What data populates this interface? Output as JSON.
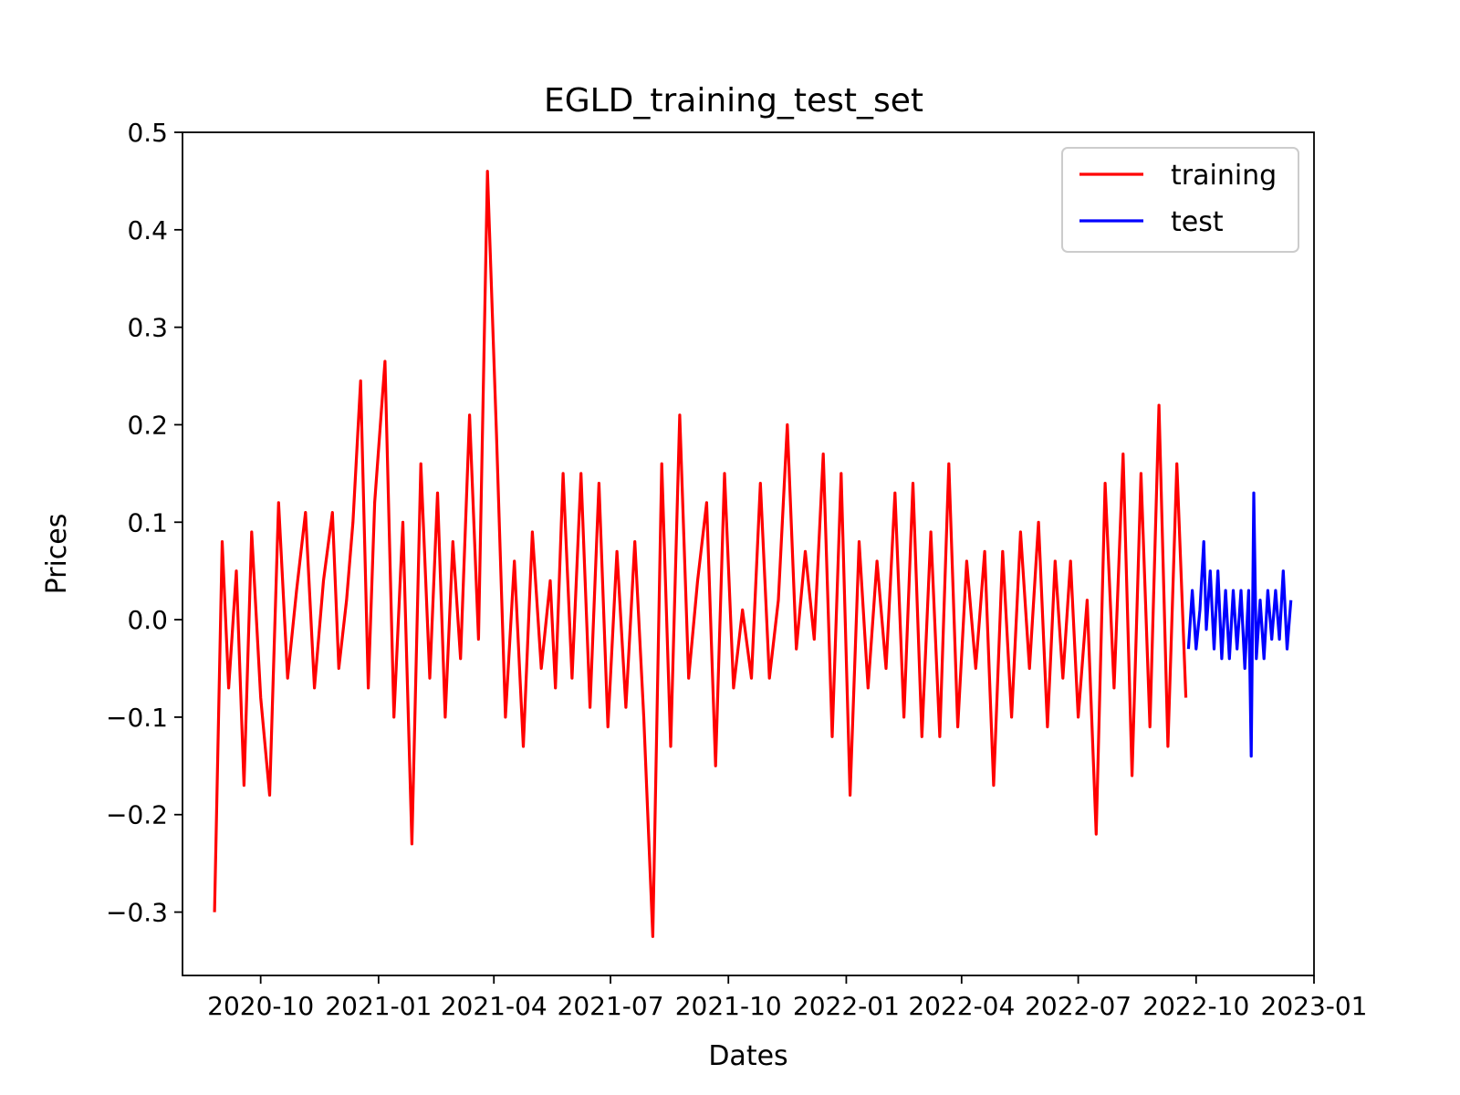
{
  "chart_data": {
    "type": "line",
    "title": "EGLD_training_test_set",
    "xlabel": "Dates",
    "ylabel": "Prices",
    "xlim": [
      "2020-08-01",
      "2023-01-01"
    ],
    "ylim": [
      -0.365,
      0.5
    ],
    "yticks": [
      {
        "value": -0.3,
        "label": "−0.3"
      },
      {
        "value": -0.2,
        "label": "−0.2"
      },
      {
        "value": -0.1,
        "label": "−0.1"
      },
      {
        "value": 0.0,
        "label": "0.0"
      },
      {
        "value": 0.1,
        "label": "0.1"
      },
      {
        "value": 0.2,
        "label": "0.2"
      },
      {
        "value": 0.3,
        "label": "0.3"
      },
      {
        "value": 0.4,
        "label": "0.4"
      },
      {
        "value": 0.5,
        "label": "0.5"
      }
    ],
    "xticks": [
      {
        "value": "2020-10-01",
        "label": "2020-10"
      },
      {
        "value": "2021-01-01",
        "label": "2021-01"
      },
      {
        "value": "2021-04-01",
        "label": "2021-04"
      },
      {
        "value": "2021-07-01",
        "label": "2021-07"
      },
      {
        "value": "2021-10-01",
        "label": "2021-10"
      },
      {
        "value": "2022-01-01",
        "label": "2022-01"
      },
      {
        "value": "2022-04-01",
        "label": "2022-04"
      },
      {
        "value": "2022-07-01",
        "label": "2022-07"
      },
      {
        "value": "2022-10-01",
        "label": "2022-10"
      },
      {
        "value": "2023-01-01",
        "label": "2023-01"
      }
    ],
    "grid": false,
    "legend_position": "top-right",
    "series": [
      {
        "name": "training",
        "color": "#ff0000",
        "x": [
          "2020-08-26",
          "2020-09-01",
          "2020-09-06",
          "2020-09-12",
          "2020-09-18",
          "2020-09-24",
          "2020-10-01",
          "2020-10-08",
          "2020-10-15",
          "2020-10-22",
          "2020-10-29",
          "2020-11-05",
          "2020-11-12",
          "2020-11-19",
          "2020-11-26",
          "2020-12-01",
          "2020-12-07",
          "2020-12-12",
          "2020-12-18",
          "2020-12-24",
          "2020-12-29",
          "2021-01-06",
          "2021-01-13",
          "2021-01-20",
          "2021-01-27",
          "2021-02-03",
          "2021-02-10",
          "2021-02-16",
          "2021-02-22",
          "2021-02-28",
          "2021-03-06",
          "2021-03-13",
          "2021-03-20",
          "2021-03-27",
          "2021-04-03",
          "2021-04-10",
          "2021-04-17",
          "2021-04-24",
          "2021-05-01",
          "2021-05-08",
          "2021-05-15",
          "2021-05-19",
          "2021-05-25",
          "2021-06-01",
          "2021-06-08",
          "2021-06-15",
          "2021-06-22",
          "2021-06-29",
          "2021-07-06",
          "2021-07-13",
          "2021-07-20",
          "2021-07-27",
          "2021-08-03",
          "2021-08-10",
          "2021-08-17",
          "2021-08-24",
          "2021-08-31",
          "2021-09-07",
          "2021-09-14",
          "2021-09-21",
          "2021-09-28",
          "2021-10-05",
          "2021-10-12",
          "2021-10-19",
          "2021-10-26",
          "2021-11-02",
          "2021-11-09",
          "2021-11-16",
          "2021-11-23",
          "2021-11-30",
          "2021-12-07",
          "2021-12-14",
          "2021-12-21",
          "2021-12-28",
          "2022-01-04",
          "2022-01-11",
          "2022-01-18",
          "2022-01-25",
          "2022-02-01",
          "2022-02-08",
          "2022-02-15",
          "2022-02-22",
          "2022-03-01",
          "2022-03-08",
          "2022-03-15",
          "2022-03-22",
          "2022-03-29",
          "2022-04-05",
          "2022-04-12",
          "2022-04-19",
          "2022-04-26",
          "2022-05-03",
          "2022-05-10",
          "2022-05-17",
          "2022-05-24",
          "2022-05-31",
          "2022-06-07",
          "2022-06-13",
          "2022-06-19",
          "2022-06-25",
          "2022-07-01",
          "2022-07-08",
          "2022-07-15",
          "2022-07-22",
          "2022-07-29",
          "2022-08-05",
          "2022-08-12",
          "2022-08-19",
          "2022-08-26",
          "2022-09-02",
          "2022-09-09",
          "2022-09-16",
          "2022-09-23"
        ],
        "y": [
          -0.3,
          0.08,
          -0.07,
          0.05,
          -0.17,
          0.09,
          -0.08,
          -0.18,
          0.12,
          -0.06,
          0.03,
          0.11,
          -0.07,
          0.04,
          0.11,
          -0.05,
          0.02,
          0.1,
          0.245,
          -0.07,
          0.12,
          0.265,
          -0.1,
          0.1,
          -0.23,
          0.16,
          -0.06,
          0.13,
          -0.1,
          0.08,
          -0.04,
          0.21,
          -0.02,
          0.46,
          0.19,
          -0.1,
          0.06,
          -0.13,
          0.09,
          -0.05,
          0.04,
          -0.07,
          0.15,
          -0.06,
          0.15,
          -0.09,
          0.14,
          -0.11,
          0.07,
          -0.09,
          0.08,
          -0.1,
          -0.325,
          0.16,
          -0.13,
          0.21,
          -0.06,
          0.04,
          0.12,
          -0.15,
          0.15,
          -0.07,
          0.01,
          -0.06,
          0.14,
          -0.06,
          0.02,
          0.2,
          -0.03,
          0.07,
          -0.02,
          0.17,
          -0.12,
          0.15,
          -0.18,
          0.08,
          -0.07,
          0.06,
          -0.05,
          0.13,
          -0.1,
          0.14,
          -0.12,
          0.09,
          -0.12,
          0.16,
          -0.11,
          0.06,
          -0.05,
          0.07,
          -0.17,
          0.07,
          -0.1,
          0.09,
          -0.05,
          0.1,
          -0.11,
          0.06,
          -0.06,
          0.06,
          -0.1,
          0.02,
          -0.22,
          0.14,
          -0.07,
          0.17,
          -0.16,
          0.15,
          -0.11,
          0.22,
          -0.13,
          0.16,
          -0.08
        ]
      },
      {
        "name": "test",
        "color": "#0000ff",
        "x": [
          "2022-09-25",
          "2022-09-28",
          "2022-10-01",
          "2022-10-04",
          "2022-10-07",
          "2022-10-09",
          "2022-10-12",
          "2022-10-15",
          "2022-10-18",
          "2022-10-21",
          "2022-10-24",
          "2022-10-27",
          "2022-10-30",
          "2022-11-02",
          "2022-11-05",
          "2022-11-08",
          "2022-11-11",
          "2022-11-13",
          "2022-11-15",
          "2022-11-17",
          "2022-11-20",
          "2022-11-23",
          "2022-11-26",
          "2022-11-29",
          "2022-12-02",
          "2022-12-05",
          "2022-12-08",
          "2022-12-11",
          "2022-12-14"
        ],
        "y": [
          -0.03,
          0.03,
          -0.03,
          0.01,
          0.08,
          -0.01,
          0.05,
          -0.03,
          0.05,
          -0.04,
          0.03,
          -0.04,
          0.03,
          -0.03,
          0.03,
          -0.05,
          0.03,
          -0.14,
          0.13,
          -0.04,
          0.02,
          -0.04,
          0.03,
          -0.02,
          0.03,
          -0.02,
          0.05,
          -0.03,
          0.02
        ]
      }
    ]
  }
}
